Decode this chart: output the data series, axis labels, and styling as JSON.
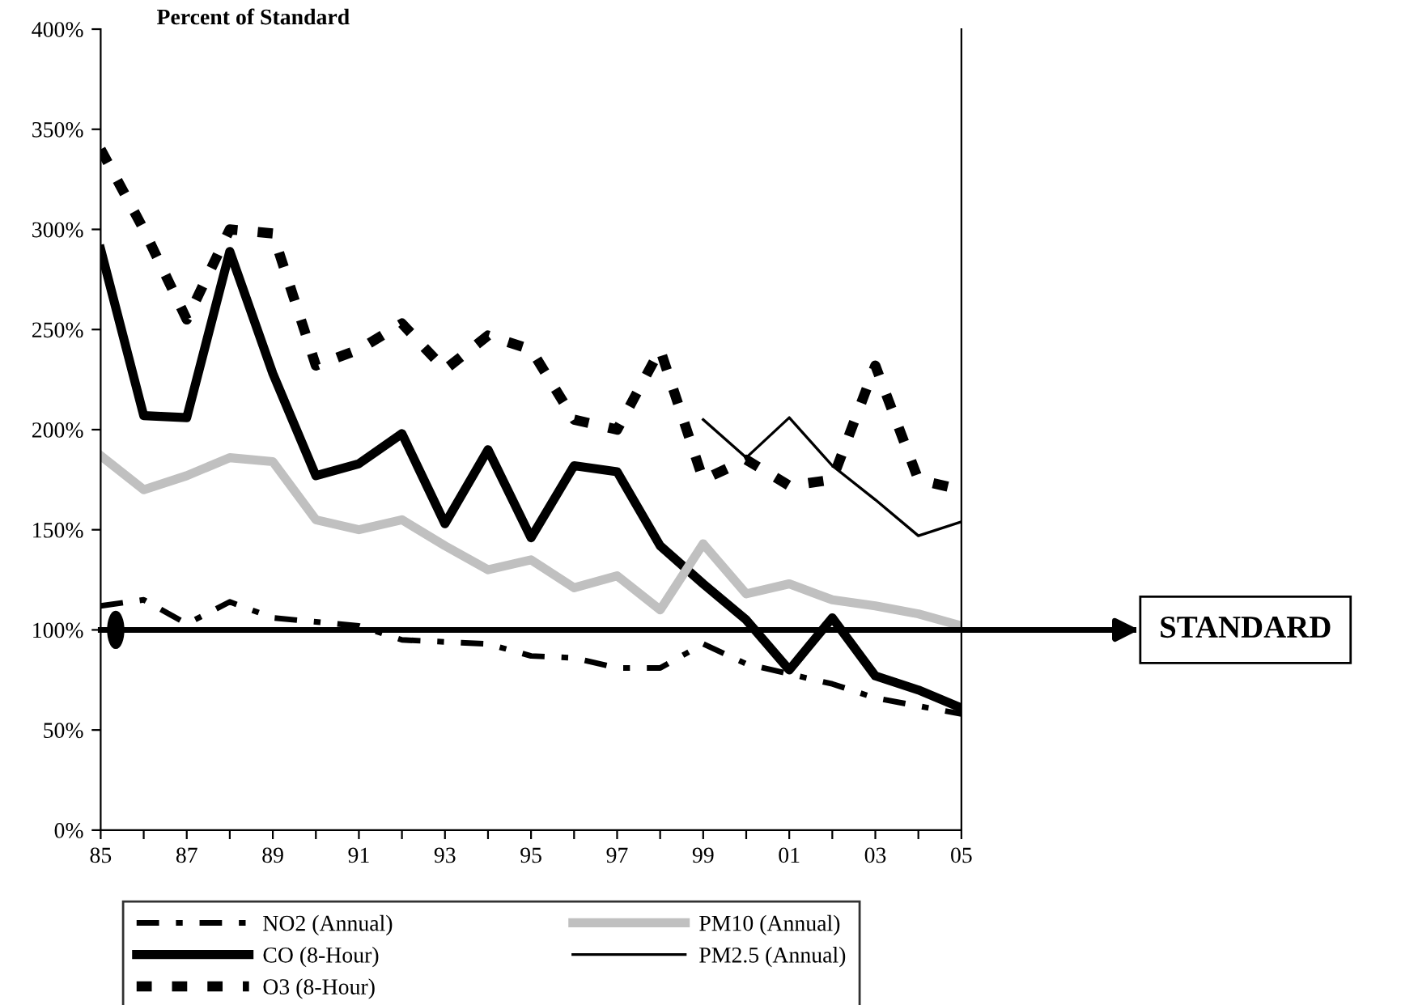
{
  "chart_data": {
    "type": "line",
    "ylabel": "Percent of Standard",
    "x": [
      1985,
      1986,
      1987,
      1988,
      1989,
      1990,
      1991,
      1992,
      1993,
      1994,
      1995,
      1996,
      1997,
      1998,
      1999,
      2000,
      2001,
      2002,
      2003,
      2004,
      2005
    ],
    "series": [
      {
        "name": "NO2 (Annual)",
        "color": "#000000",
        "line_style": "dashed",
        "values": [
          112,
          115,
          103,
          114,
          106,
          104,
          102,
          95,
          94,
          93,
          87,
          86,
          81,
          81,
          93,
          83,
          78,
          73,
          66,
          62,
          58
        ]
      },
      {
        "name": "CO (8-Hour)",
        "color": "#000000",
        "line_style": "solid",
        "values": [
          290,
          207,
          206,
          289,
          228,
          177,
          183,
          198,
          153,
          190,
          146,
          182,
          179,
          142,
          123,
          105,
          80,
          106,
          77,
          70,
          61
        ]
      },
      {
        "name": "O3 (8-Hour)",
        "color": "#000000",
        "line_style": "dotted",
        "values": [
          340,
          300,
          255,
          300,
          298,
          232,
          240,
          253,
          230,
          247,
          240,
          205,
          200,
          240,
          175,
          185,
          172,
          175,
          232,
          175,
          170
        ]
      },
      {
        "name": "PM10 (Annual)",
        "color": "#c0c0c0",
        "line_style": "solid",
        "values": [
          187,
          170,
          177,
          186,
          184,
          155,
          150,
          155,
          142,
          130,
          135,
          121,
          127,
          110,
          143,
          118,
          123,
          115,
          112,
          108,
          102
        ]
      },
      {
        "name": "PM2.5 (Annual)",
        "color": "#000000",
        "line_style": "solid",
        "x": [
          1999,
          2000,
          2001,
          2002,
          2003,
          2004,
          2005
        ],
        "values": [
          205,
          186,
          206,
          182,
          165,
          147,
          154
        ]
      }
    ],
    "xlim": [
      1985,
      2005
    ],
    "xticks": [
      {
        "value": 1985,
        "label": "85"
      },
      {
        "value": 1986,
        "label": null
      },
      {
        "value": 1987,
        "label": "87"
      },
      {
        "value": 1988,
        "label": null
      },
      {
        "value": 1989,
        "label": "89"
      },
      {
        "value": 1990,
        "label": null
      },
      {
        "value": 1991,
        "label": "91"
      },
      {
        "value": 1992,
        "label": null
      },
      {
        "value": 1993,
        "label": "93"
      },
      {
        "value": 1994,
        "label": null
      },
      {
        "value": 1995,
        "label": "95"
      },
      {
        "value": 1996,
        "label": null
      },
      {
        "value": 1997,
        "label": "97"
      },
      {
        "value": 1998,
        "label": null
      },
      {
        "value": 1999,
        "label": "99"
      },
      {
        "value": 2000,
        "label": null
      },
      {
        "value": 2001,
        "label": "01"
      },
      {
        "value": 2002,
        "label": null
      },
      {
        "value": 2003,
        "label": "03"
      },
      {
        "value": 2004,
        "label": null
      },
      {
        "value": 2005,
        "label": "05"
      }
    ],
    "ylim": [
      0,
      400
    ],
    "yticks": [
      {
        "value": 0,
        "label": "0%"
      },
      {
        "value": 50,
        "label": "50%"
      },
      {
        "value": 100,
        "label": "100%"
      },
      {
        "value": 150,
        "label": "150%"
      },
      {
        "value": 200,
        "label": "200%"
      },
      {
        "value": 250,
        "label": "250%"
      },
      {
        "value": 300,
        "label": "300%"
      },
      {
        "value": 350,
        "label": "350%"
      },
      {
        "value": 400,
        "label": "400%"
      }
    ],
    "ref_lines": [
      {
        "axis": "y",
        "value": 100,
        "label": "STANDARD",
        "color": "#000000"
      }
    ],
    "grid": false,
    "legend": "bottom",
    "marker": "none"
  }
}
